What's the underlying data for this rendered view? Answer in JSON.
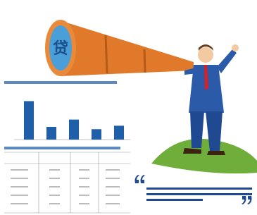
{
  "lens_text": "贷",
  "chart_data": {
    "type": "bar",
    "values": [
      100,
      33,
      52,
      27,
      36
    ],
    "color": "#1f5fa8",
    "ylim": [
      0,
      110
    ]
  }
}
